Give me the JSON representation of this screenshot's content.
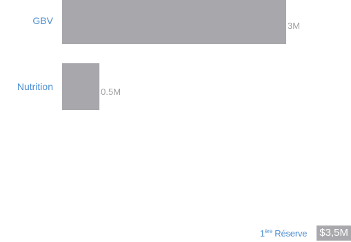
{
  "chart_data": {
    "type": "bar",
    "orientation": "horizontal",
    "categories": [
      "GBV",
      "Nutrition"
    ],
    "values": [
      3,
      0.5
    ],
    "value_labels": [
      "3M",
      "0.5M"
    ],
    "xlim": [
      0,
      3
    ],
    "grid": false,
    "bar_color": "#a8a7ab",
    "category_label_color": "#4d8fd1",
    "value_label_color": "#a0a0a0"
  },
  "footer": {
    "reserve_prefix": "1",
    "reserve_sup": "ère",
    "reserve_text": " Réserve",
    "reserve_value": "$3,5M"
  }
}
